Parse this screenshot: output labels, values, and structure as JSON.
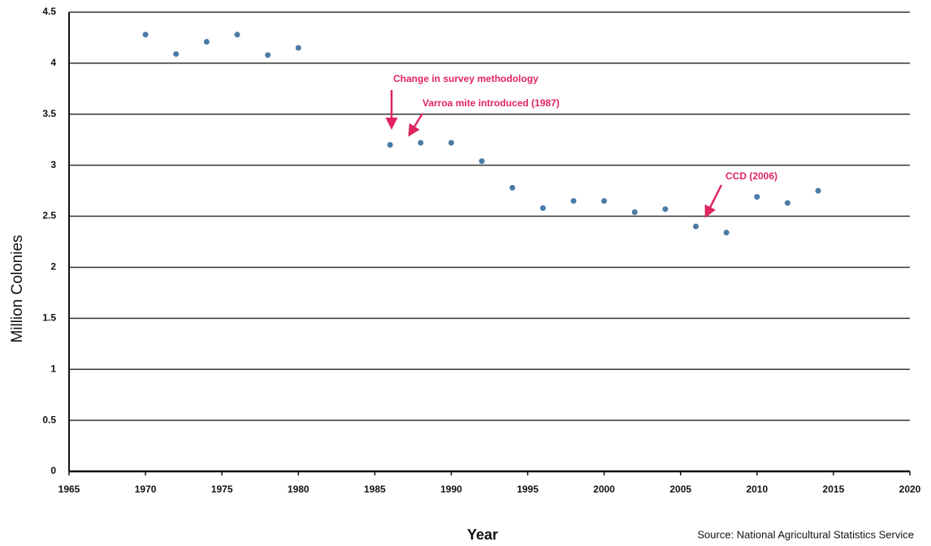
{
  "chart_data": {
    "type": "scatter",
    "y_label": "Million Colonies",
    "x_label": "Year",
    "source": "Source:  National Agricultural Statistics Service",
    "x": [
      1970,
      1972,
      1974,
      1976,
      1978,
      1980,
      1986,
      1988,
      1990,
      1992,
      1994,
      1996,
      1998,
      2000,
      2002,
      2004,
      2006,
      2008,
      2010,
      2012,
      2014
    ],
    "values": [
      4.28,
      4.09,
      4.21,
      4.28,
      4.08,
      4.15,
      3.2,
      3.22,
      3.22,
      3.04,
      2.78,
      2.58,
      2.65,
      2.65,
      2.54,
      2.57,
      2.4,
      2.34,
      2.69,
      2.63,
      2.75
    ],
    "color": "#4a7ba6",
    "xlim": [
      1965,
      2020
    ],
    "xticks": [
      1965,
      1970,
      1975,
      1980,
      1985,
      1990,
      1995,
      2000,
      2005,
      2010,
      2015,
      2020
    ],
    "ylim": [
      0,
      4.5
    ],
    "yticks": [
      0,
      0.5,
      1,
      1.5,
      2,
      2.5,
      3,
      3.5,
      4,
      4.5
    ],
    "grid": true,
    "annotations": [
      "Change in survey methodology",
      "Varroa mite introduced (1987)",
      "CCD (2006)"
    ],
    "annotation_color": "#e0245e"
  }
}
